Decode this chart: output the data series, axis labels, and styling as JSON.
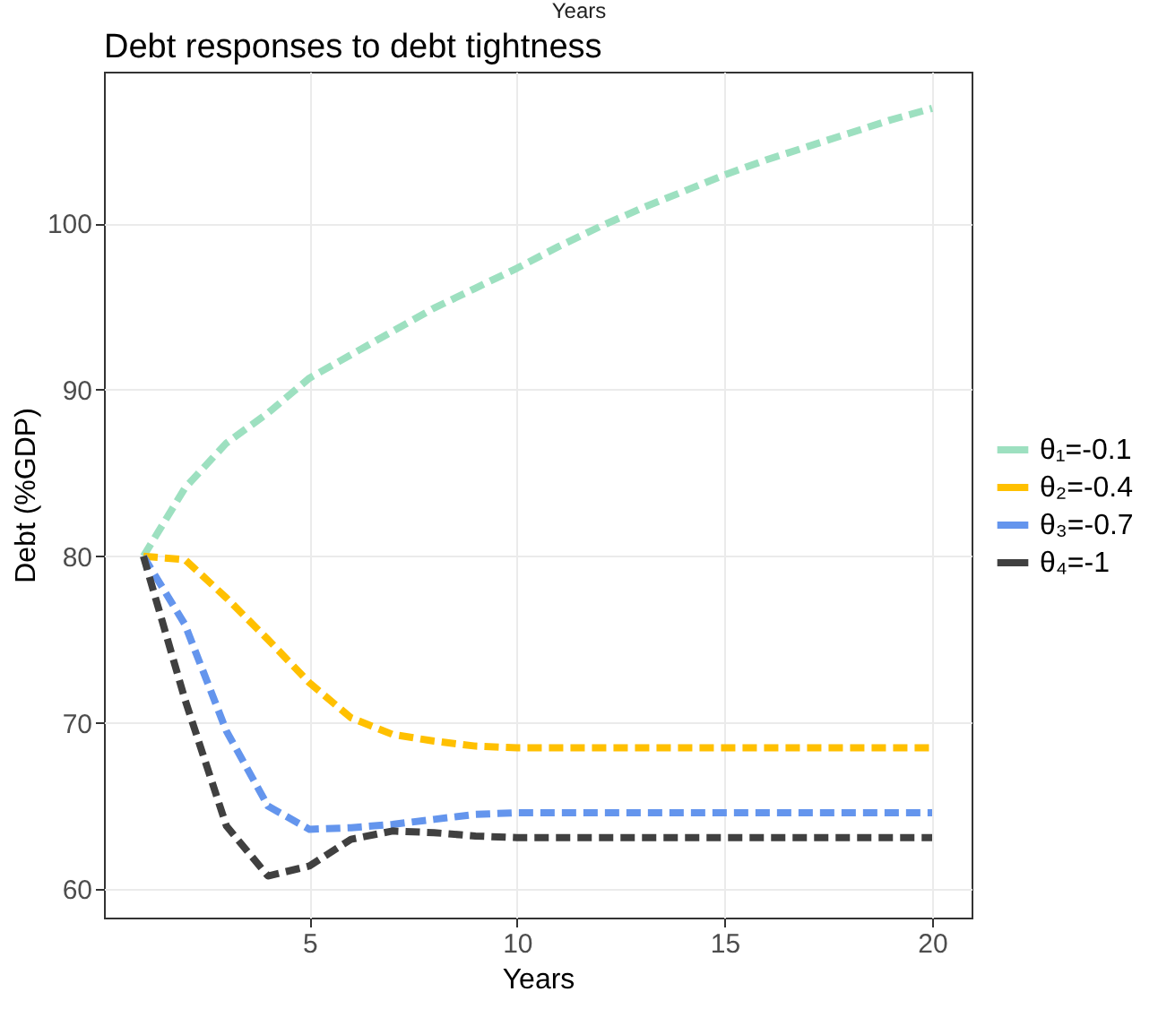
{
  "chart_data": {
    "type": "line",
    "title": "Debt responses to debt tightness",
    "xlabel": "Years",
    "ylabel": "Debt (%GDP)",
    "annotations": [
      "Years"
    ],
    "x": [
      1,
      2,
      3,
      4,
      5,
      6,
      7,
      8,
      9,
      10,
      11,
      12,
      13,
      14,
      15,
      16,
      17,
      18,
      19,
      20
    ],
    "series": [
      {
        "name": "θ₁=-0.1",
        "color": "#9de0c0",
        "values": [
          80,
          84.1,
          86.8,
          88.6,
          90.7,
          92.1,
          93.5,
          94.9,
          96.1,
          97.3,
          98.6,
          99.8,
          100.9,
          101.9,
          102.9,
          103.8,
          104.6,
          105.4,
          106.2,
          106.9
        ]
      },
      {
        "name": "θ₂=-0.4",
        "color": "#ffc000",
        "values": [
          80,
          79.8,
          77.5,
          75,
          72.4,
          70.3,
          69.3,
          68.9,
          68.6,
          68.5,
          68.5,
          68.5,
          68.5,
          68.5,
          68.5,
          68.5,
          68.5,
          68.5,
          68.5,
          68.5
        ]
      },
      {
        "name": "θ₃=-0.7",
        "color": "#6495ed",
        "values": [
          80,
          75.9,
          69.5,
          65,
          63.6,
          63.7,
          63.9,
          64.2,
          64.5,
          64.6,
          64.6,
          64.6,
          64.6,
          64.6,
          64.6,
          64.6,
          64.6,
          64.6,
          64.6,
          64.6
        ]
      },
      {
        "name": "θ₄=-1",
        "color": "#404040",
        "values": [
          80,
          71.4,
          63.8,
          60.8,
          61.4,
          63,
          63.5,
          63.4,
          63.2,
          63.1,
          63.1,
          63.1,
          63.1,
          63.1,
          63.1,
          63.1,
          63.1,
          63.1,
          63.1,
          63.1
        ]
      }
    ],
    "xlim": [
      0.05,
      20.95
    ],
    "xticks": [
      5,
      10,
      15,
      20
    ],
    "ylim": [
      58.3,
      109.1
    ],
    "yticks": [
      60,
      70,
      80,
      90,
      100
    ],
    "grid": true,
    "legend": "right",
    "marker": "none",
    "line_style": "dashed"
  }
}
